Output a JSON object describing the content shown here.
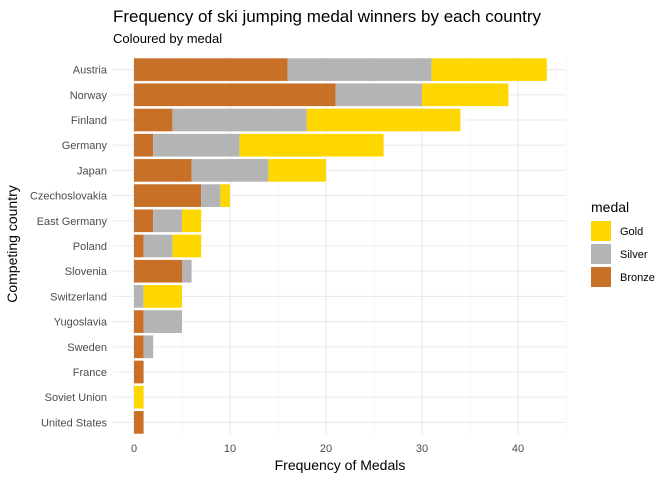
{
  "chart_data": {
    "type": "bar",
    "orientation": "horizontal",
    "stacked": true,
    "title": "Frequency of ski jumping medal winners by each country",
    "subtitle": "Coloured by medal",
    "xlabel": "Frequency of Medals",
    "ylabel": "Competing country",
    "xlim": [
      0,
      45
    ],
    "xticks": [
      0,
      10,
      20,
      30,
      40
    ],
    "grid": true,
    "legend": {
      "title": "medal",
      "position": "right"
    },
    "categories": [
      "Austria",
      "Norway",
      "Finland",
      "Germany",
      "Japan",
      "Czechoslovakia",
      "East Germany",
      "Poland",
      "Slovenia",
      "Switzerland",
      "Yugoslavia",
      "Sweden",
      "France",
      "Soviet Union",
      "United States"
    ],
    "series": [
      {
        "name": "Bronze",
        "color": "#c87028",
        "values": [
          16,
          21,
          4,
          2,
          6,
          7,
          2,
          1,
          5,
          0,
          1,
          1,
          1,
          0,
          1
        ]
      },
      {
        "name": "Silver",
        "color": "#b4b4b4",
        "values": [
          15,
          9,
          14,
          9,
          8,
          2,
          3,
          3,
          1,
          1,
          4,
          1,
          0,
          0,
          0
        ]
      },
      {
        "name": "Gold",
        "color": "#ffd700",
        "values": [
          12,
          9,
          16,
          15,
          6,
          1,
          2,
          3,
          0,
          4,
          0,
          0,
          0,
          1,
          0
        ]
      }
    ],
    "legend_order": [
      "Gold",
      "Silver",
      "Bronze"
    ]
  }
}
